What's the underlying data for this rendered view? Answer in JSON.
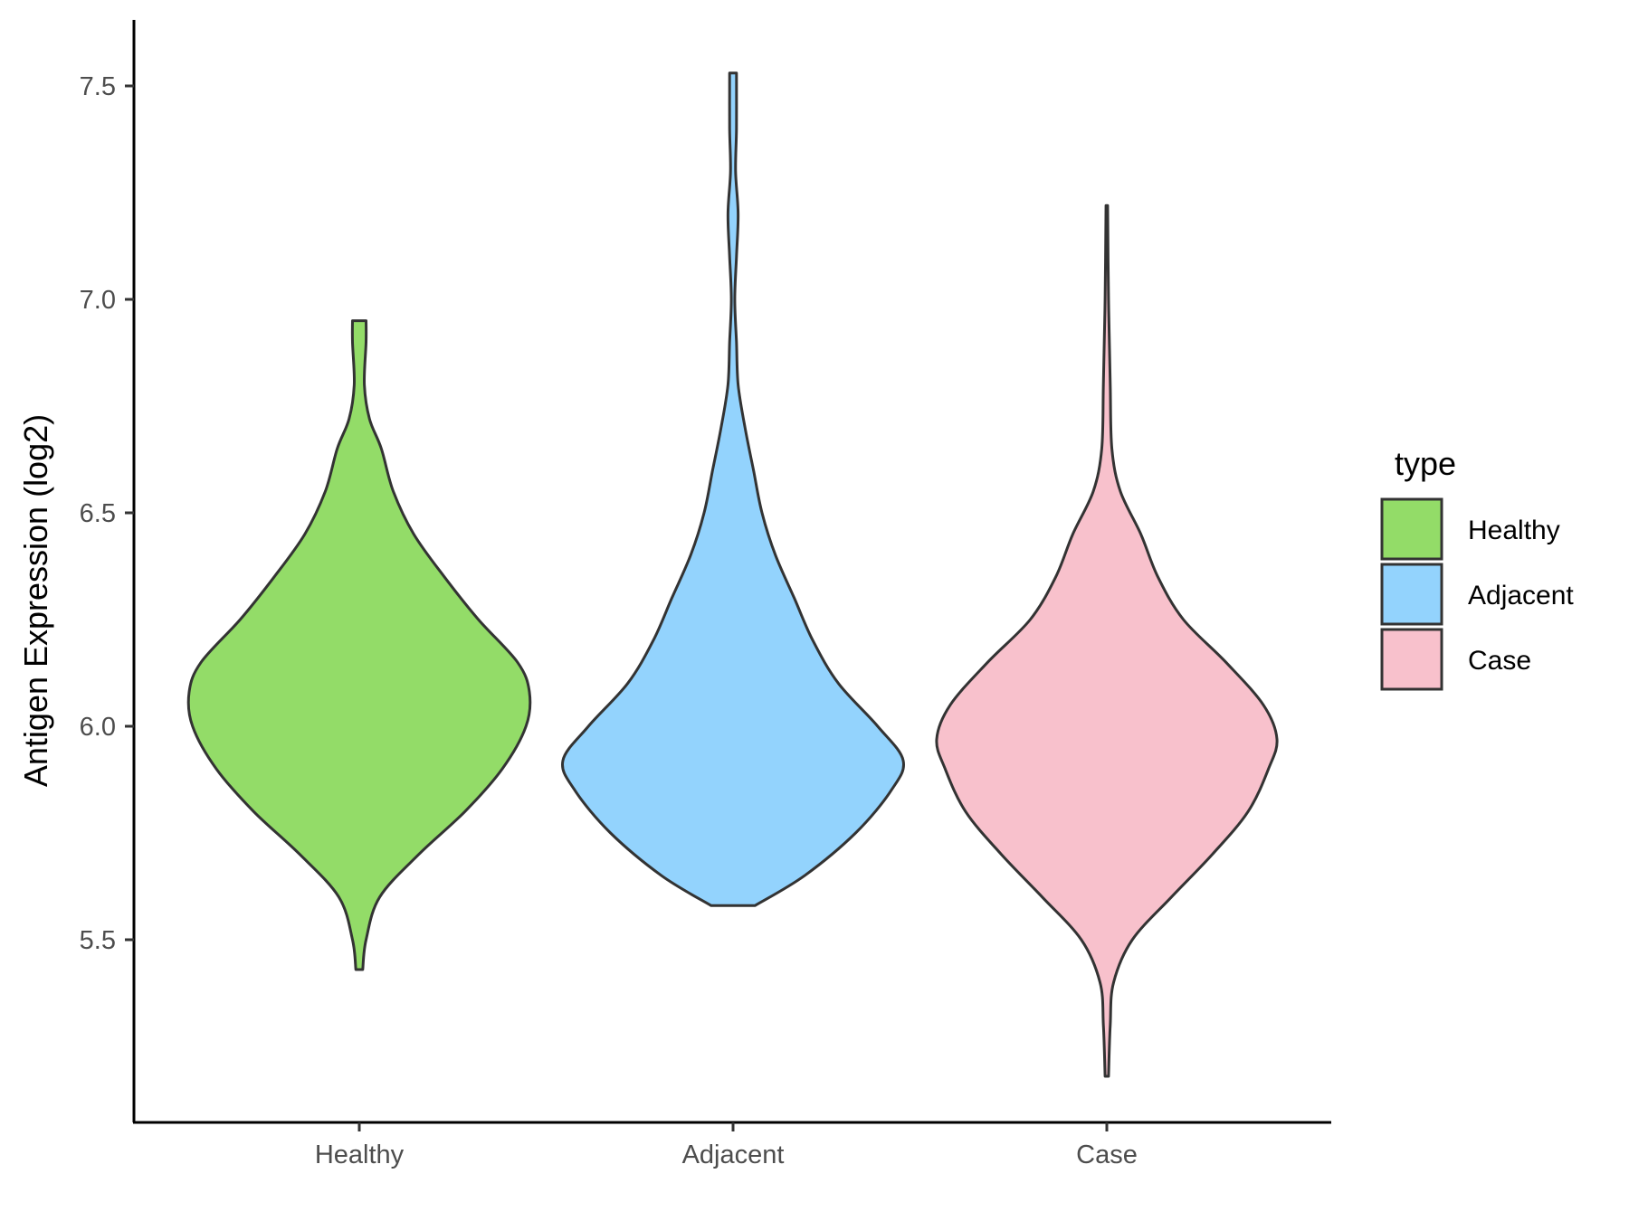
{
  "chart_data": {
    "type": "violin",
    "ylabel": "Antigen Expression (log2)",
    "categories": [
      "Healthy",
      "Adjacent",
      "Case"
    ],
    "yticks": [
      "5.5",
      "6.0",
      "6.5",
      "7.0",
      "7.5"
    ],
    "ylim": [
      5.05,
      7.65
    ],
    "legend": {
      "title": "type",
      "position": "right"
    },
    "series": [
      {
        "name": "Healthy",
        "color": "#93dc68",
        "ymin": 5.43,
        "ymax": 6.95,
        "density": [
          [
            5.43,
            0.02
          ],
          [
            5.5,
            0.04
          ],
          [
            5.6,
            0.12
          ],
          [
            5.7,
            0.35
          ],
          [
            5.8,
            0.62
          ],
          [
            5.9,
            0.84
          ],
          [
            6.0,
            0.98
          ],
          [
            6.08,
            1.0
          ],
          [
            6.15,
            0.93
          ],
          [
            6.25,
            0.7
          ],
          [
            6.35,
            0.5
          ],
          [
            6.45,
            0.32
          ],
          [
            6.55,
            0.2
          ],
          [
            6.65,
            0.13
          ],
          [
            6.72,
            0.06
          ],
          [
            6.8,
            0.03
          ],
          [
            6.9,
            0.04
          ],
          [
            6.95,
            0.04
          ]
        ]
      },
      {
        "name": "Adjacent",
        "color": "#93d3fd",
        "ymin": 5.58,
        "ymax": 7.53,
        "density": [
          [
            5.58,
            0.13
          ],
          [
            5.65,
            0.42
          ],
          [
            5.75,
            0.72
          ],
          [
            5.85,
            0.93
          ],
          [
            5.92,
            1.0
          ],
          [
            6.0,
            0.85
          ],
          [
            6.1,
            0.62
          ],
          [
            6.2,
            0.47
          ],
          [
            6.3,
            0.36
          ],
          [
            6.4,
            0.25
          ],
          [
            6.5,
            0.17
          ],
          [
            6.6,
            0.12
          ],
          [
            6.7,
            0.07
          ],
          [
            6.8,
            0.03
          ],
          [
            6.9,
            0.02
          ],
          [
            7.0,
            0.01
          ],
          [
            7.1,
            0.02
          ],
          [
            7.2,
            0.03
          ],
          [
            7.3,
            0.015
          ],
          [
            7.4,
            0.02
          ],
          [
            7.53,
            0.02
          ]
        ]
      },
      {
        "name": "Case",
        "color": "#f8c1cc",
        "ymin": 5.18,
        "ymax": 7.22,
        "density": [
          [
            5.18,
            0.01
          ],
          [
            5.3,
            0.02
          ],
          [
            5.4,
            0.04
          ],
          [
            5.5,
            0.15
          ],
          [
            5.6,
            0.38
          ],
          [
            5.7,
            0.62
          ],
          [
            5.8,
            0.83
          ],
          [
            5.9,
            0.95
          ],
          [
            5.97,
            1.0
          ],
          [
            6.05,
            0.92
          ],
          [
            6.15,
            0.7
          ],
          [
            6.25,
            0.45
          ],
          [
            6.35,
            0.3
          ],
          [
            6.45,
            0.2
          ],
          [
            6.55,
            0.08
          ],
          [
            6.65,
            0.03
          ],
          [
            6.8,
            0.02
          ],
          [
            7.0,
            0.01
          ],
          [
            7.22,
            0.005
          ]
        ]
      }
    ]
  }
}
